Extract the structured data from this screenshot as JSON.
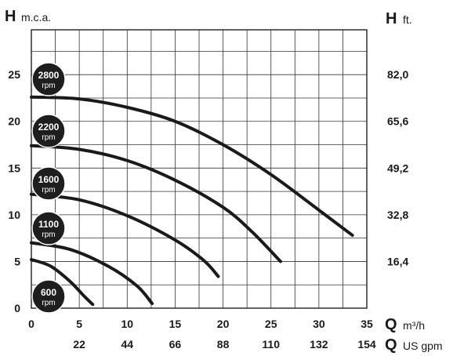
{
  "chart_data": {
    "type": "line",
    "y_left": {
      "symbol": "H",
      "unit": "m.c.a.",
      "ticks": [
        0,
        5,
        10,
        15,
        20,
        25
      ],
      "range": [
        0,
        29.8
      ]
    },
    "y_right": {
      "symbol": "H",
      "unit": "ft.",
      "ticks": [
        "16,4",
        "32,8",
        "49,2",
        "65,6",
        "82,0"
      ],
      "tick_positions_m": [
        5,
        10,
        15,
        20,
        25
      ]
    },
    "x_primary": {
      "symbol": "Q",
      "unit": "m³/h",
      "ticks": [
        0,
        5,
        10,
        15,
        20,
        25,
        30,
        35
      ],
      "range": [
        0,
        35
      ]
    },
    "x_secondary": {
      "symbol": "Q",
      "unit": "US gpm",
      "ticks": [
        "22",
        "44",
        "66",
        "88",
        "110",
        "132",
        "154"
      ],
      "tick_positions_m3h": [
        5,
        10,
        15,
        20,
        25,
        30,
        35
      ]
    },
    "grid": true,
    "series": [
      {
        "name": "2800",
        "unit": "rpm",
        "points": [
          [
            0,
            22.6
          ],
          [
            5,
            22.4
          ],
          [
            10,
            21.5
          ],
          [
            15,
            20.0
          ],
          [
            20,
            17.5
          ],
          [
            25,
            14.3
          ],
          [
            30,
            10.5
          ],
          [
            33.5,
            7.8
          ]
        ]
      },
      {
        "name": "2200",
        "unit": "rpm",
        "points": [
          [
            0,
            17.4
          ],
          [
            5,
            17.0
          ],
          [
            10,
            15.8
          ],
          [
            15,
            13.7
          ],
          [
            20,
            10.8
          ],
          [
            23,
            8.2
          ],
          [
            26,
            5.0
          ]
        ]
      },
      {
        "name": "1600",
        "unit": "rpm",
        "points": [
          [
            0,
            12.2
          ],
          [
            5,
            11.6
          ],
          [
            10,
            9.9
          ],
          [
            15,
            7.3
          ],
          [
            18,
            5.1
          ],
          [
            19.5,
            3.4
          ]
        ]
      },
      {
        "name": "1100",
        "unit": "rpm",
        "points": [
          [
            0,
            7.0
          ],
          [
            4,
            6.3
          ],
          [
            8,
            4.5
          ],
          [
            11,
            2.4
          ],
          [
            12.6,
            0.5
          ]
        ]
      },
      {
        "name": "600",
        "unit": "rpm",
        "points": [
          [
            0,
            5.2
          ],
          [
            2,
            4.5
          ],
          [
            4,
            2.9
          ],
          [
            5.5,
            1.3
          ],
          [
            6.4,
            0.4
          ]
        ]
      }
    ]
  }
}
